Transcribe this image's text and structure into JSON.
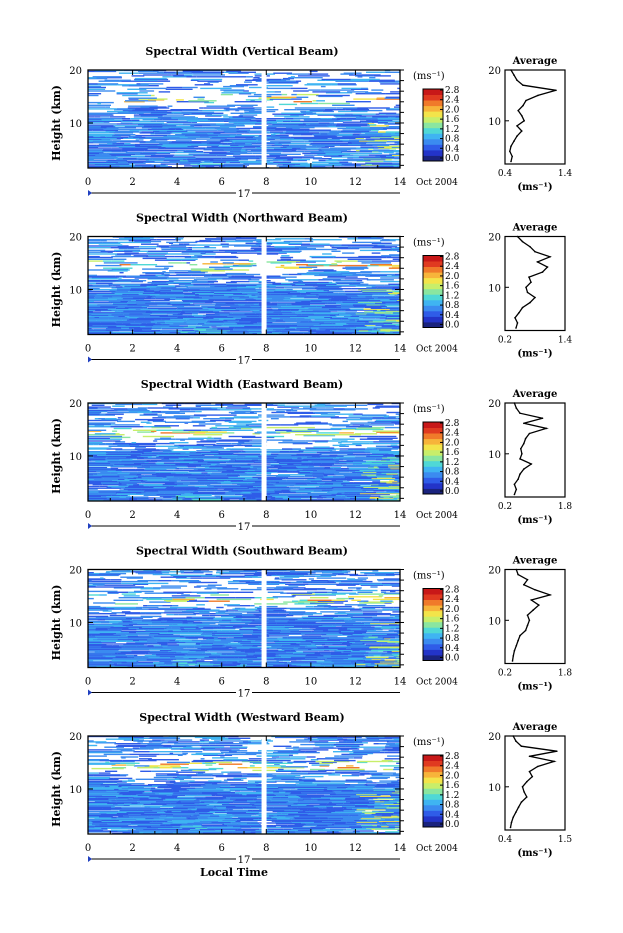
{
  "xlabel": "Local Time",
  "colorbar": {
    "unit": "(ms⁻¹)",
    "ticks": [
      "0.0",
      "0.4",
      "0.8",
      "1.2",
      "1.6",
      "2.0",
      "2.4",
      "2.8"
    ],
    "colors": [
      "#1a237e",
      "#2334c8",
      "#2f5ce8",
      "#3b8bf0",
      "#3fb4f2",
      "#4fd8d6",
      "#8ae6a0",
      "#c8ee6a",
      "#f3e44a",
      "#f7b43a",
      "#f07a2a",
      "#e03a20",
      "#c81818"
    ]
  },
  "chart_data": [
    {
      "type": "heatmap",
      "title": "Spectral Width (Vertical Beam)",
      "ylabel": "Height (km)",
      "xlabel": "",
      "x_ticks": [
        "0",
        "2",
        "4",
        "6",
        "8",
        "10",
        "12",
        "14"
      ],
      "xlim": [
        0,
        14
      ],
      "y_ticks": [
        "10",
        "20"
      ],
      "ylim": [
        1.5,
        20
      ],
      "gap_hour": 7.9,
      "date_day": "17",
      "date_label": "Oct 2004",
      "profile": {
        "title": "Average",
        "xlim": [
          0.4,
          1.4
        ],
        "x_ticks": [
          "0.4",
          "1.4"
        ],
        "y_ticks": [
          "10",
          "20"
        ],
        "xlabel": "(ms⁻¹)",
        "height_km": [
          2,
          3,
          4,
          5,
          6,
          7,
          8,
          9,
          10,
          11,
          12,
          13,
          14,
          15,
          16,
          17,
          18,
          19,
          20
        ],
        "width": [
          0.5,
          0.52,
          0.48,
          0.5,
          0.55,
          0.6,
          0.68,
          0.6,
          0.72,
          0.68,
          0.62,
          0.7,
          0.75,
          0.95,
          1.25,
          0.7,
          0.6,
          0.55,
          0.5
        ]
      }
    },
    {
      "type": "heatmap",
      "title": "Spectral Width (Northward Beam)",
      "ylabel": "Height (km)",
      "xlabel": "",
      "x_ticks": [
        "0",
        "2",
        "4",
        "6",
        "8",
        "10",
        "12",
        "14"
      ],
      "xlim": [
        0,
        14
      ],
      "y_ticks": [
        "10",
        "20"
      ],
      "ylim": [
        1.5,
        20
      ],
      "gap_hour": 7.9,
      "date_day": "17",
      "date_label": "Oct 2004",
      "profile": {
        "title": "Average",
        "xlim": [
          0.2,
          1.4
        ],
        "x_ticks": [
          "0.2",
          "1.4"
        ],
        "y_ticks": [
          "10",
          "20"
        ],
        "xlabel": "(ms⁻¹)",
        "height_km": [
          2,
          3,
          4,
          5,
          6,
          7,
          8,
          9,
          10,
          11,
          12,
          13,
          14,
          15,
          16,
          17,
          18,
          19,
          20
        ],
        "width": [
          0.42,
          0.45,
          0.4,
          0.48,
          0.55,
          0.7,
          0.8,
          0.65,
          0.62,
          0.72,
          0.68,
          0.95,
          1.05,
          0.85,
          1.1,
          0.8,
          0.7,
          0.55,
          0.45
        ]
      }
    },
    {
      "type": "heatmap",
      "title": "Spectral Width (Eastward Beam)",
      "ylabel": "Height (km)",
      "xlabel": "",
      "x_ticks": [
        "0",
        "2",
        "4",
        "6",
        "8",
        "10",
        "12",
        "14"
      ],
      "xlim": [
        0,
        14
      ],
      "y_ticks": [
        "10",
        "20"
      ],
      "ylim": [
        1.5,
        20
      ],
      "gap_hour": 7.9,
      "date_day": "17",
      "date_label": "Oct 2004",
      "profile": {
        "title": "Average",
        "xlim": [
          0.2,
          1.8
        ],
        "x_ticks": [
          "0.2",
          "1.8"
        ],
        "y_ticks": [
          "10",
          "20"
        ],
        "xlabel": "(ms⁻¹)",
        "height_km": [
          2,
          3,
          4,
          5,
          6,
          7,
          8,
          9,
          10,
          11,
          12,
          13,
          14,
          15,
          16,
          17,
          18,
          19,
          20
        ],
        "width": [
          0.45,
          0.5,
          0.45,
          0.55,
          0.6,
          0.7,
          0.9,
          0.6,
          0.65,
          0.62,
          0.7,
          0.75,
          0.85,
          1.3,
          0.7,
          1.2,
          0.6,
          0.5,
          0.45
        ]
      }
    },
    {
      "type": "heatmap",
      "title": "Spectral Width (Southward Beam)",
      "ylabel": "Height (km)",
      "xlabel": "",
      "x_ticks": [
        "0",
        "2",
        "4",
        "6",
        "8",
        "10",
        "12",
        "14"
      ],
      "xlim": [
        0,
        14
      ],
      "y_ticks": [
        "10",
        "20"
      ],
      "ylim": [
        1.5,
        20
      ],
      "gap_hour": 7.9,
      "date_day": "17",
      "date_label": "Oct 2004",
      "profile": {
        "title": "Average",
        "xlim": [
          0.2,
          1.8
        ],
        "x_ticks": [
          "0.2",
          "1.8"
        ],
        "y_ticks": [
          "10",
          "20"
        ],
        "xlabel": "(ms⁻¹)",
        "height_km": [
          2,
          3,
          4,
          5,
          6,
          7,
          8,
          9,
          10,
          11,
          12,
          13,
          14,
          15,
          16,
          17,
          18,
          19,
          20
        ],
        "width": [
          0.4,
          0.42,
          0.45,
          0.5,
          0.55,
          0.6,
          0.75,
          0.8,
          0.85,
          0.8,
          0.95,
          1.1,
          0.9,
          1.4,
          1.0,
          0.7,
          0.8,
          0.55,
          0.5
        ]
      }
    },
    {
      "type": "heatmap",
      "title": "Spectral Width (Westward Beam)",
      "ylabel": "Height (km)",
      "xlabel": "Local Time",
      "x_ticks": [
        "0",
        "2",
        "4",
        "6",
        "8",
        "10",
        "12",
        "14"
      ],
      "xlim": [
        0,
        14
      ],
      "y_ticks": [
        "10",
        "20"
      ],
      "ylim": [
        1.5,
        20
      ],
      "gap_hour": 7.9,
      "date_day": "17",
      "date_label": "Oct 2004",
      "profile": {
        "title": "Average",
        "xlim": [
          0.4,
          1.5
        ],
        "x_ticks": [
          "0.4",
          "1.5"
        ],
        "y_ticks": [
          "10",
          "20"
        ],
        "xlabel": "(ms⁻¹)",
        "height_km": [
          2,
          3,
          4,
          5,
          6,
          7,
          8,
          9,
          10,
          11,
          12,
          13,
          14,
          15,
          16,
          17,
          18,
          19,
          20
        ],
        "width": [
          0.5,
          0.52,
          0.55,
          0.6,
          0.65,
          0.7,
          0.8,
          0.75,
          0.72,
          0.8,
          0.9,
          0.85,
          1.0,
          1.3,
          0.85,
          1.35,
          0.7,
          0.6,
          0.55
        ]
      }
    }
  ]
}
